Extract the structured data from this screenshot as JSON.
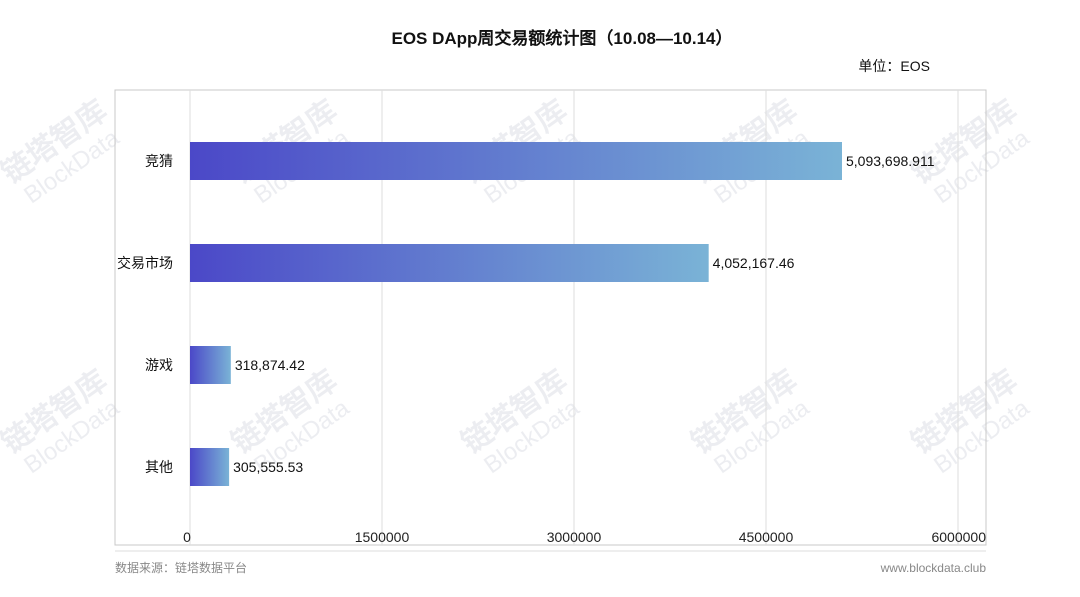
{
  "chart_data": {
    "type": "bar",
    "orientation": "horizontal",
    "title": "EOS DApp周交易额统计图（10.08—10.14）",
    "unit": "单位：EOS",
    "categories": [
      "竞猜",
      "交易市场",
      "游戏",
      "其他"
    ],
    "values": [
      5093698.911,
      4052167.46,
      318874.42,
      305555.53
    ],
    "data_labels": [
      "5,093,698.911",
      "4,052,167.46",
      "318,874.42",
      "305,555.53"
    ],
    "x_ticks": [
      "0",
      "1500000",
      "3000000",
      "4500000",
      "6000000"
    ],
    "xlim": [
      0,
      6000000
    ],
    "grid": true,
    "bar_gradient": [
      "#4b48c8",
      "#7ab3d6"
    ]
  },
  "footer": {
    "source": "数据来源：链塔数据平台",
    "site": "www.blockdata.club"
  },
  "watermark": {
    "brand": "链塔智库",
    "brand_en": "BlockData"
  }
}
